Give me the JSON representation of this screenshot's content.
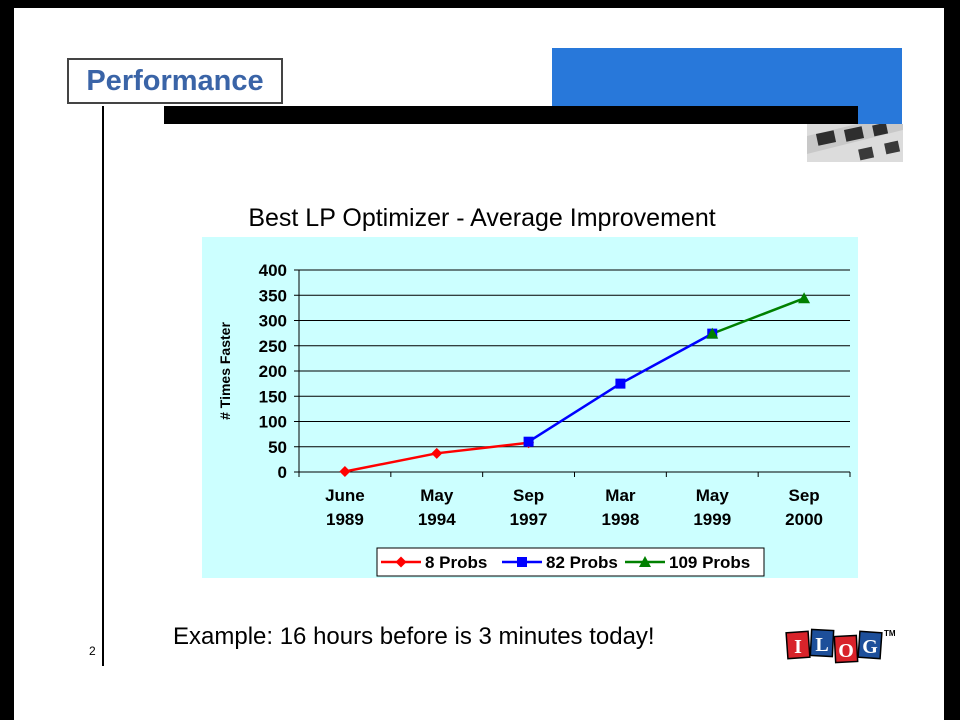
{
  "slide": {
    "title": "Performance",
    "page_number": "2",
    "caption": "Example: 16 hours before is 3 minutes today!"
  },
  "logo": {
    "letters": [
      "I",
      "L",
      "O",
      "G"
    ],
    "trademark": "TM"
  },
  "colors": {
    "title_text": "#3a64a7",
    "header_block": "#2878da",
    "chart_bg": "#ccffff"
  },
  "chart_data": {
    "type": "line",
    "title": "Best LP Optimizer - Average Improvement",
    "ylabel": "# Times Faster",
    "xlabel": "",
    "ylim": [
      0,
      400
    ],
    "yticks": [
      0,
      50,
      100,
      150,
      200,
      250,
      300,
      350,
      400
    ],
    "grid": true,
    "legend_position": "bottom",
    "categories": [
      [
        "June",
        "1989"
      ],
      [
        "May",
        "1994"
      ],
      [
        "Sep",
        "1997"
      ],
      [
        "Mar",
        "1998"
      ],
      [
        "May",
        "1999"
      ],
      [
        "Sep",
        "2000"
      ]
    ],
    "series": [
      {
        "name": "8 Probs",
        "color": "#ff0000",
        "marker": "diamond",
        "points": [
          [
            0,
            1
          ],
          [
            1,
            37
          ],
          [
            2,
            58
          ]
        ]
      },
      {
        "name": "82 Probs",
        "color": "#0000ff",
        "marker": "square",
        "points": [
          [
            2,
            60
          ],
          [
            3,
            175
          ],
          [
            4,
            274
          ]
        ]
      },
      {
        "name": "109 Probs",
        "color": "#008000",
        "marker": "triangle",
        "points": [
          [
            4,
            274
          ],
          [
            5,
            344
          ]
        ]
      }
    ]
  }
}
